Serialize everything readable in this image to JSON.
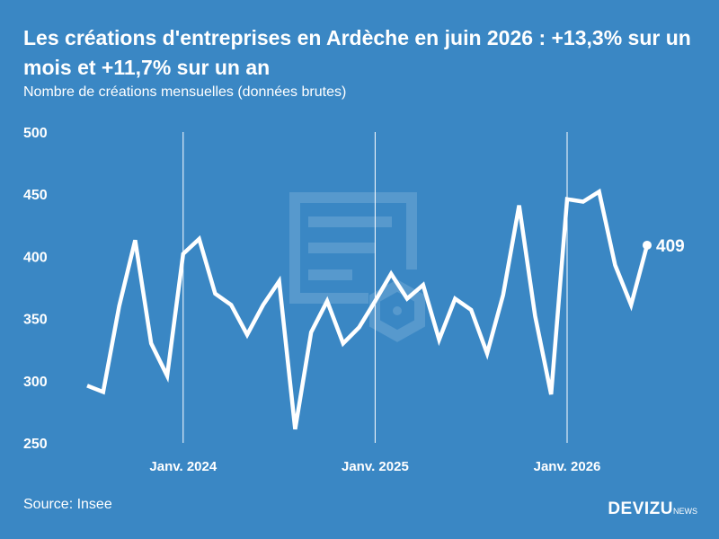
{
  "header": {
    "title": "Les créations d'entreprises en Ardèche en juin 2026 : +13,3% sur un mois et +11,7% sur un an",
    "subtitle": "Nombre de créations mensuelles (données brutes)"
  },
  "footer": {
    "source": "Source: Insee",
    "brand": "DEVIZU",
    "brand_sub": "NEWS"
  },
  "colors": {
    "background": "#3a87c4",
    "line": "#ffffff",
    "watermark": "#5b9bcf"
  },
  "icons": {
    "watermark": "document-icon"
  },
  "chart_data": {
    "type": "line",
    "title": "Les créations d'entreprises en Ardèche en juin 2026 : +13,3% sur un mois et +11,7% sur un an",
    "subtitle": "Nombre de créations mensuelles (données brutes)",
    "xlabel": "",
    "ylabel": "",
    "ylim": [
      250,
      500
    ],
    "yticks": [
      250,
      300,
      350,
      400,
      450,
      500
    ],
    "xtick_labels": [
      {
        "date": "2024-01",
        "label": "Janv. 2024"
      },
      {
        "date": "2025-01",
        "label": "Janv. 2025"
      },
      {
        "date": "2026-01",
        "label": "Janv. 2026"
      }
    ],
    "grid": "vertical lines at January of each year",
    "end_label": "409",
    "series": [
      {
        "x": [
          "2023-07",
          "2023-08",
          "2023-09",
          "2023-10",
          "2023-11",
          "2023-12",
          "2024-01",
          "2024-02",
          "2024-03",
          "2024-04",
          "2024-05",
          "2024-06",
          "2024-07",
          "2024-08",
          "2024-09",
          "2024-10",
          "2024-11",
          "2024-12",
          "2025-01",
          "2025-02",
          "2025-03",
          "2025-04",
          "2025-05",
          "2025-06",
          "2025-07",
          "2025-08",
          "2025-09",
          "2025-10",
          "2025-11",
          "2025-12",
          "2026-01",
          "2026-02",
          "2026-03",
          "2026-04",
          "2026-05",
          "2026-06"
        ],
        "values": [
          296,
          291,
          360,
          413,
          330,
          304,
          402,
          414,
          370,
          361,
          337,
          361,
          380,
          261,
          339,
          364,
          330,
          343,
          364,
          386,
          366,
          377,
          333,
          366,
          357,
          322,
          369,
          441,
          352,
          289,
          446,
          444,
          452,
          393,
          361,
          409
        ]
      }
    ]
  }
}
